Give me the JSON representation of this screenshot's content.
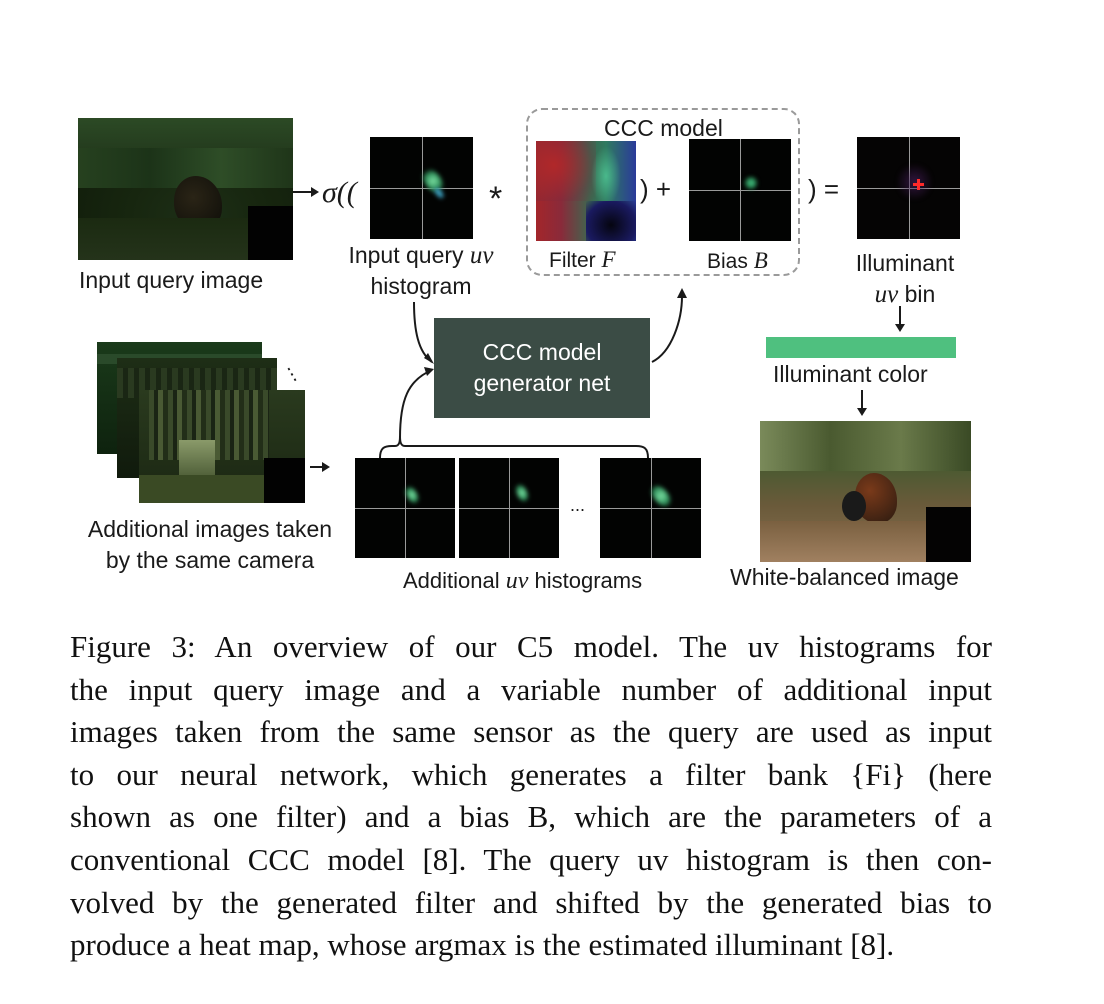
{
  "labels": {
    "input_query_image": "Input query image",
    "input_hist_line1": "Input query ",
    "input_hist_uv": "uv",
    "input_hist_line2": "histogram",
    "ccc_model": "CCC model",
    "filter": "Filter ",
    "filter_sym": "F",
    "bias": "Bias ",
    "bias_sym": "B",
    "illuminant_line1": "Illuminant",
    "illuminant_uv": "uv",
    "illuminant_bin": " bin",
    "illuminant_color": "Illuminant color",
    "generator_line1": "CCC model",
    "generator_line2": "generator net",
    "additional_images_line1": "Additional images taken",
    "additional_images_line2": "by the same camera",
    "additional_hist_prefix": "Additional ",
    "additional_hist_uv": "uv",
    "additional_hist_suffix": " histograms",
    "white_balanced": "White-balanced image",
    "ellipsis": "...",
    "ellipsis_vertical": "⋮"
  },
  "symbols": {
    "sigma_open": "σ((",
    "conv": "*",
    "close_plus": ") +",
    "close_eq": ") ="
  },
  "caption": {
    "lines": [
      "Figure 3:  An overview of our C5 model. The uv histograms for",
      "the input query image and a variable number of additional input",
      "images taken from the same sensor as the query are used as input",
      "to our neural network, which generates a filter bank {Fi} (here",
      "shown as one filter) and a bias B, which are the parameters of a",
      "conventional CCC model [8]. The query uv histogram is then con-",
      "volved by the generated filter and shifted by the generated bias to",
      "produce a heat map, whose argmax is the estimated illuminant [8]."
    ]
  },
  "colors": {
    "generator_box": "#3b4c45",
    "illuminant_color": "#4fc07f",
    "illuminant_marker": "#ff2a2a",
    "dashed_border": "#9a9a9a"
  }
}
